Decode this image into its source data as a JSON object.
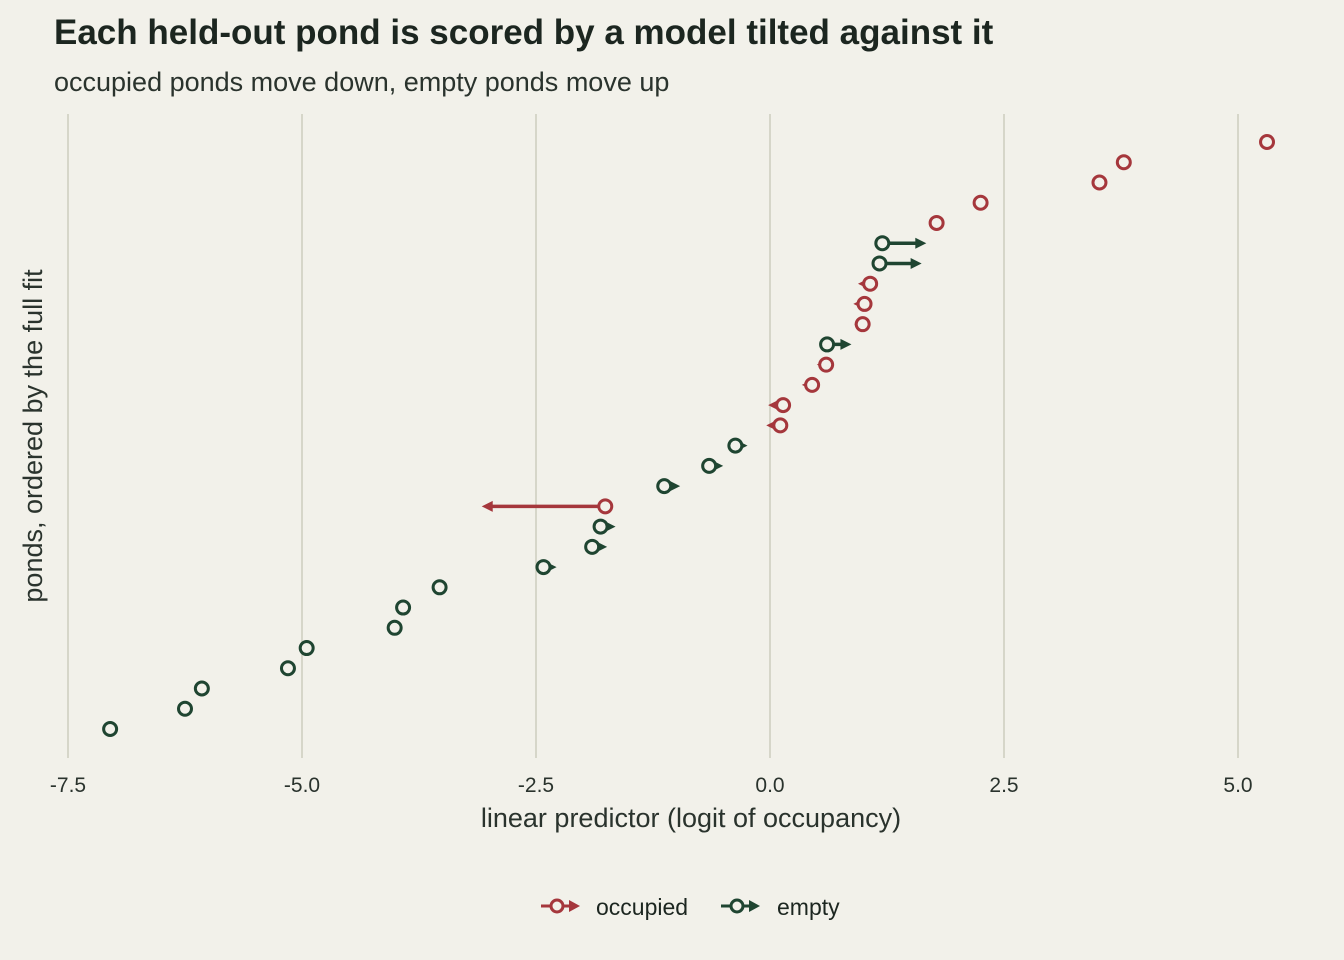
{
  "chart_data": {
    "type": "scatter",
    "title": "Each held-out pond is scored by a model tilted against it",
    "subtitle": "occupied ponds move down, empty ponds move up",
    "xlabel": "linear predictor (logit of occupancy)",
    "ylabel": "ponds, ordered by the full fit",
    "xlim": [
      -7.7,
      5.5
    ],
    "xticks": [
      -7.5,
      -5.0,
      -2.5,
      0.0,
      2.5,
      5.0
    ],
    "xtick_labels": [
      "-7.5",
      "-5.0",
      "-2.5",
      "0.0",
      "2.5",
      "5.0"
    ],
    "grid": "vertical",
    "legend_position": "bottom",
    "colors": {
      "occupied": "#a5373c",
      "empty": "#1f4531",
      "background": "#f2f1ea",
      "grid": "#d6d6c9"
    },
    "series": [
      {
        "name": "occupied",
        "color": "#a5373c"
      },
      {
        "name": "empty",
        "color": "#1f4531"
      }
    ],
    "note": "each pond: open circle = full-fit linear predictor, arrow tip = held-out (leave-one-out) linear predictor; ponds listed bottom to top",
    "ponds": [
      {
        "rank": 1,
        "group": "empty",
        "full_fit": -7.05,
        "held_out": -7.05
      },
      {
        "rank": 2,
        "group": "empty",
        "full_fit": -6.25,
        "held_out": -6.25
      },
      {
        "rank": 3,
        "group": "empty",
        "full_fit": -6.07,
        "held_out": -6.07
      },
      {
        "rank": 4,
        "group": "empty",
        "full_fit": -5.15,
        "held_out": -5.15
      },
      {
        "rank": 5,
        "group": "empty",
        "full_fit": -4.95,
        "held_out": -4.95
      },
      {
        "rank": 6,
        "group": "empty",
        "full_fit": -4.01,
        "held_out": -4.01
      },
      {
        "rank": 7,
        "group": "empty",
        "full_fit": -3.92,
        "held_out": -3.92
      },
      {
        "rank": 8,
        "group": "empty",
        "full_fit": -3.53,
        "held_out": -3.53
      },
      {
        "rank": 9,
        "group": "empty",
        "full_fit": -2.42,
        "held_out": -2.28
      },
      {
        "rank": 10,
        "group": "empty",
        "full_fit": -1.9,
        "held_out": -1.74
      },
      {
        "rank": 11,
        "group": "empty",
        "full_fit": -1.81,
        "held_out": -1.65
      },
      {
        "rank": 12,
        "group": "occupied",
        "full_fit": -1.76,
        "held_out": -3.08
      },
      {
        "rank": 13,
        "group": "empty",
        "full_fit": -1.13,
        "held_out": -0.96
      },
      {
        "rank": 14,
        "group": "empty",
        "full_fit": -0.65,
        "held_out": -0.5
      },
      {
        "rank": 15,
        "group": "empty",
        "full_fit": -0.37,
        "held_out": -0.24
      },
      {
        "rank": 16,
        "group": "occupied",
        "full_fit": 0.11,
        "held_out": -0.04
      },
      {
        "rank": 17,
        "group": "occupied",
        "full_fit": 0.14,
        "held_out": -0.02
      },
      {
        "rank": 18,
        "group": "occupied",
        "full_fit": 0.45,
        "held_out": 0.34
      },
      {
        "rank": 19,
        "group": "occupied",
        "full_fit": 0.6,
        "held_out": 0.5
      },
      {
        "rank": 20,
        "group": "empty",
        "full_fit": 0.61,
        "held_out": 0.87
      },
      {
        "rank": 21,
        "group": "occupied",
        "full_fit": 0.99,
        "held_out": 0.9
      },
      {
        "rank": 22,
        "group": "occupied",
        "full_fit": 1.01,
        "held_out": 0.89
      },
      {
        "rank": 23,
        "group": "occupied",
        "full_fit": 1.07,
        "held_out": 0.94
      },
      {
        "rank": 24,
        "group": "empty",
        "full_fit": 1.17,
        "held_out": 1.62
      },
      {
        "rank": 25,
        "group": "empty",
        "full_fit": 1.2,
        "held_out": 1.67
      },
      {
        "rank": 26,
        "group": "occupied",
        "full_fit": 1.78,
        "held_out": 1.7
      },
      {
        "rank": 27,
        "group": "occupied",
        "full_fit": 2.25,
        "held_out": 2.17
      },
      {
        "rank": 28,
        "group": "occupied",
        "full_fit": 3.52,
        "held_out": 3.52
      },
      {
        "rank": 29,
        "group": "occupied",
        "full_fit": 3.78,
        "held_out": 3.78
      },
      {
        "rank": 30,
        "group": "occupied",
        "full_fit": 5.31,
        "held_out": 5.31
      }
    ]
  }
}
